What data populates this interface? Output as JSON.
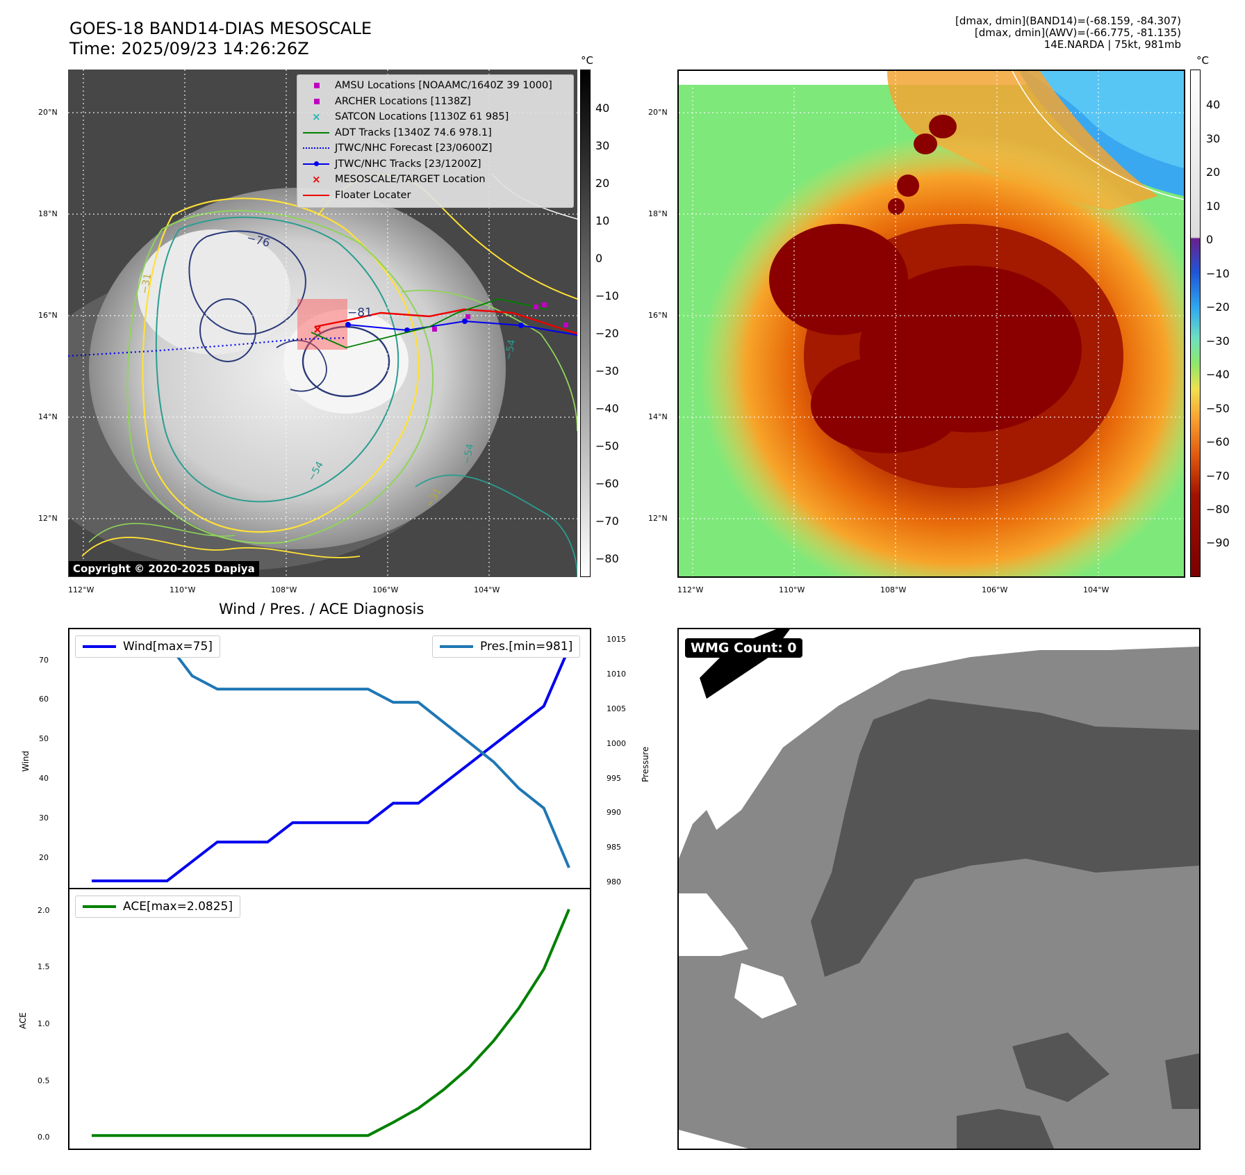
{
  "header": {
    "title": "GOES-18 BAND14-DIAS MESOSCALE",
    "time": "Time: 2025/09/23 14:26:26Z",
    "meta": [
      "[dmax, dmin](BAND14)=(-68.159, -84.307)",
      "[dmax, dmin](AWV)=(-66.775, -81.135)",
      "14E.NARDA | 75kt, 981mb"
    ]
  },
  "map_left": {
    "lat_ticks": [
      "20°N",
      "18°N",
      "16°N",
      "14°N",
      "12°N"
    ],
    "lon_ticks": [
      "112°W",
      "110°W",
      "108°W",
      "106°W",
      "104°W"
    ],
    "colorbar_unit": "°C",
    "colorbar_ticks": [
      "40",
      "30",
      "20",
      "10",
      "0",
      "−10",
      "−20",
      "−30",
      "−40",
      "−50",
      "−60",
      "−70",
      "−80"
    ],
    "contour_labels": [
      "−76",
      "−81",
      "−31",
      "−31",
      "−54",
      "−54",
      "−54"
    ],
    "copyright": "Copyright © 2020-2025 Dapiya",
    "legend": [
      {
        "label": "AMSU Locations [NOAAMC/1640Z 39 1000]",
        "symbol": "square",
        "color": "#c000c0"
      },
      {
        "label": "ARCHER Locations [1138Z]",
        "symbol": "square",
        "color": "#c000c0"
      },
      {
        "label": "SATCON Locations [1130Z 61 985]",
        "symbol": "x",
        "color": "#1fb5b5"
      },
      {
        "label": "ADT Tracks [1340Z 74.6 978.1]",
        "symbol": "line",
        "color": "#008000"
      },
      {
        "label": "JTWC/NHC Forecast [23/0600Z]",
        "symbol": "dotted",
        "color": "#0000ee"
      },
      {
        "label": "JTWC/NHC Tracks [23/1200Z]",
        "symbol": "line-dot",
        "color": "#0000ee"
      },
      {
        "label": "MESOSCALE/TARGET Location",
        "symbol": "x",
        "color": "#ee0000"
      },
      {
        "label": "Floater Locater",
        "symbol": "line",
        "color": "#ee0000"
      }
    ]
  },
  "map_right": {
    "lat_ticks": [
      "20°N",
      "18°N",
      "16°N",
      "14°N",
      "12°N"
    ],
    "lon_ticks": [
      "112°W",
      "110°W",
      "108°W",
      "106°W",
      "104°W"
    ],
    "colorbar_unit": "°C",
    "colorbar_ticks": [
      "40",
      "30",
      "20",
      "10",
      "0",
      "−10",
      "−20",
      "−30",
      "−40",
      "−50",
      "−60",
      "−70",
      "−80",
      "−90"
    ]
  },
  "diagnosis": {
    "title": "Wind / Pres. / ACE Diagnosis",
    "wind_label": "Wind",
    "pressure_label": "Pressure",
    "ace_label": "ACE",
    "wind_legend": "Wind[max=75]",
    "pres_legend": "Pres.[min=981]",
    "ace_legend": "ACE[max=2.0825]",
    "wind_ticks": [
      "70",
      "60",
      "50",
      "40",
      "30",
      "20"
    ],
    "pres_ticks": [
      "1015",
      "1010",
      "1005",
      "1000",
      "995",
      "990",
      "985",
      "980"
    ],
    "ace_ticks": [
      "2.0",
      "1.5",
      "1.0",
      "0.5",
      "0.0"
    ],
    "wind_color": "#0000ee",
    "pres_color": "#1f77b4",
    "ace_color": "#008000"
  },
  "wmg_panel": {
    "badge": "WMG Count: 0"
  },
  "chart_data": [
    {
      "type": "line",
      "title": "Wind / Pres. / ACE Diagnosis",
      "ylabel": "Wind",
      "ylim": [
        15,
        78
      ],
      "series": [
        {
          "name": "Wind[max=75]",
          "values": [
            15,
            15,
            15,
            15,
            20,
            25,
            25,
            25,
            30,
            30,
            30,
            30,
            35,
            35,
            40,
            45,
            50,
            55,
            60,
            75
          ]
        }
      ]
    },
    {
      "type": "line",
      "ylabel": "Pressure",
      "ylim": [
        979,
        1016
      ],
      "series": [
        {
          "name": "Pres.[min=981]",
          "values": [
            1015,
            1015,
            1015,
            1015,
            1010,
            1008,
            1008,
            1008,
            1008,
            1008,
            1008,
            1008,
            1006,
            1006,
            1003,
            1000,
            997,
            993,
            990,
            981
          ]
        }
      ]
    },
    {
      "type": "line",
      "ylabel": "ACE",
      "ylim": [
        -0.05,
        2.2
      ],
      "series": [
        {
          "name": "ACE[max=2.0825]",
          "values": [
            0,
            0,
            0,
            0,
            0,
            0,
            0,
            0,
            0,
            0,
            0,
            0,
            0.12,
            0.25,
            0.42,
            0.62,
            0.87,
            1.17,
            1.53,
            2.08
          ]
        }
      ]
    }
  ]
}
